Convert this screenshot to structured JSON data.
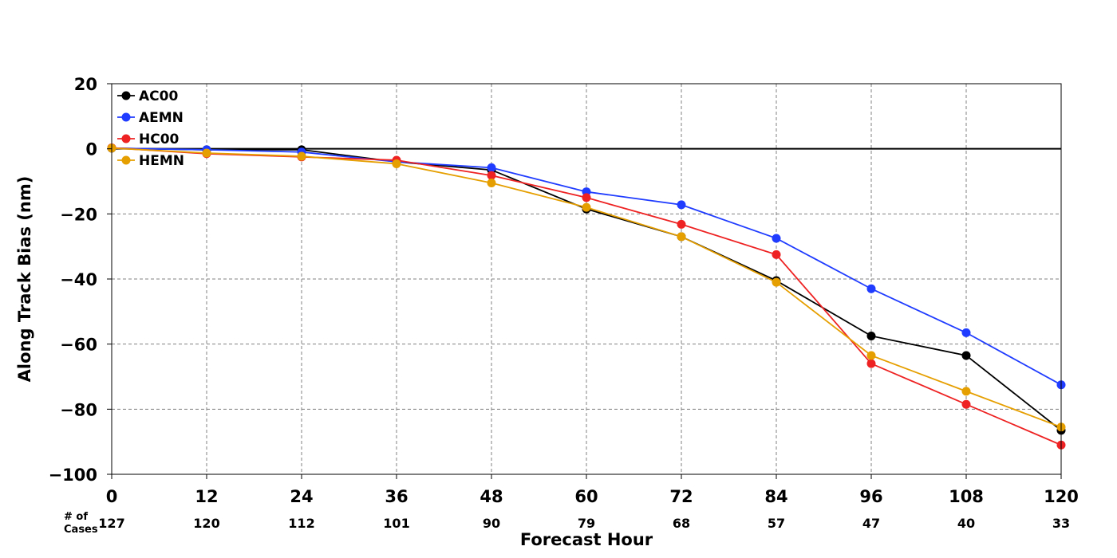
{
  "chart_data": {
    "type": "line",
    "xlabel": "Forecast Hour",
    "ylabel": "Along Track Bias (nm)",
    "x": [
      0,
      12,
      24,
      36,
      48,
      60,
      72,
      84,
      96,
      108,
      120
    ],
    "xticks": [
      "0",
      "12",
      "24",
      "36",
      "48",
      "60",
      "72",
      "84",
      "96",
      "108",
      "120"
    ],
    "yticks": [
      "20",
      "0",
      "−20",
      "−40",
      "−60",
      "−80",
      "−100"
    ],
    "ylim": [
      -100,
      20
    ],
    "xlim": [
      0,
      120
    ],
    "grid": "dashed",
    "zero_line": true,
    "legend_position": "top-left",
    "cases_header": [
      "# of",
      "Cases"
    ],
    "cases": [
      "127",
      "120",
      "112",
      "101",
      "90",
      "79",
      "68",
      "57",
      "47",
      "40",
      "33"
    ],
    "series": [
      {
        "name": "AC00",
        "color": "#000000",
        "values": [
          0.2,
          -0.3,
          -0.3,
          -4.0,
          -6.5,
          -18.5,
          -27.0,
          -40.5,
          -57.5,
          -63.5,
          -86.5
        ]
      },
      {
        "name": "AEMN",
        "color": "#1f3cff",
        "values": [
          0.2,
          -0.3,
          -1.0,
          -4.0,
          -5.8,
          -13.2,
          -17.2,
          -27.5,
          -43.0,
          -56.5,
          -72.5
        ]
      },
      {
        "name": "HC00",
        "color": "#ee2222",
        "values": [
          0.3,
          -1.5,
          -2.5,
          -3.5,
          -8.2,
          -15.0,
          -23.2,
          -32.5,
          -66.0,
          -78.5,
          -91.0
        ]
      },
      {
        "name": "HEMN",
        "color": "#e69f00",
        "values": [
          0.2,
          -1.3,
          -2.3,
          -4.6,
          -10.5,
          -18.0,
          -27.0,
          -41.0,
          -63.5,
          -74.5,
          -85.5
        ]
      }
    ]
  }
}
